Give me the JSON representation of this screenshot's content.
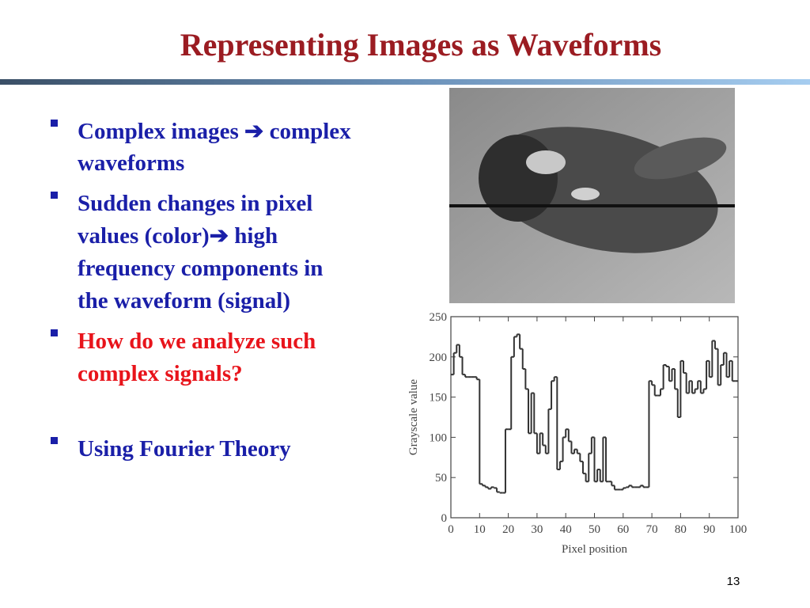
{
  "title": "Representing Images as Waveforms",
  "bullets": [
    {
      "lines": [
        "Complex images ➔ complex",
        "waveforms"
      ],
      "color": "#1a1fa8"
    },
    {
      "lines": [
        "Sudden changes in pixel",
        "values (color)➔ high",
        "frequency components in",
        "the waveform (signal)"
      ],
      "color": "#1a1fa8"
    },
    {
      "lines": [
        "How do we analyze such",
        "complex  signals?"
      ],
      "color": "#e8141b"
    },
    {
      "lines": [
        "Using Fourier Theory"
      ],
      "color": "#1a1fa8"
    }
  ],
  "page_number": 13,
  "chart_data": {
    "type": "line",
    "step": true,
    "x_label": "Pixel position",
    "y_label": "Grayscale value",
    "x": [
      0,
      1,
      2,
      3,
      4,
      5,
      6,
      7,
      8,
      9,
      10,
      11,
      12,
      13,
      14,
      15,
      16,
      17,
      18,
      19,
      20,
      21,
      22,
      23,
      24,
      25,
      26,
      27,
      28,
      29,
      30,
      31,
      32,
      33,
      34,
      35,
      36,
      37,
      38,
      39,
      40,
      41,
      42,
      43,
      44,
      45,
      46,
      47,
      48,
      49,
      50,
      51,
      52,
      53,
      54,
      55,
      56,
      57,
      58,
      59,
      60,
      61,
      62,
      63,
      64,
      65,
      66,
      67,
      68,
      69,
      70,
      71,
      72,
      73,
      74,
      75,
      76,
      77,
      78,
      79,
      80,
      81,
      82,
      83,
      84,
      85,
      86,
      87,
      88,
      89,
      90,
      91,
      92,
      93,
      94,
      95,
      96,
      97,
      98,
      99
    ],
    "series": [
      {
        "name": "Grayscale",
        "color": "#333333",
        "values": [
          178,
          205,
          215,
          200,
          178,
          175,
          175,
          175,
          175,
          172,
          42,
          40,
          38,
          36,
          38,
          37,
          32,
          31,
          31,
          110,
          110,
          200,
          225,
          228,
          210,
          185,
          160,
          105,
          155,
          105,
          80,
          105,
          90,
          80,
          135,
          170,
          175,
          60,
          70,
          100,
          110,
          95,
          80,
          85,
          80,
          70,
          55,
          45,
          80,
          100,
          45,
          60,
          45,
          100,
          45,
          45,
          40,
          35,
          35,
          35,
          37,
          38,
          40,
          38,
          38,
          38,
          40,
          38,
          38,
          170,
          165,
          152,
          152,
          160,
          190,
          188,
          170,
          185,
          160,
          125,
          195,
          180,
          155,
          170,
          155,
          160,
          170,
          155,
          160,
          195,
          175,
          220,
          210,
          165,
          190,
          205,
          175,
          195,
          170,
          170
        ]
      }
    ],
    "xlim": [
      0,
      100
    ],
    "ylim": [
      0,
      250
    ],
    "xticks": [
      0,
      10,
      20,
      30,
      40,
      50,
      60,
      70,
      80,
      90,
      100
    ],
    "yticks": [
      0,
      50,
      100,
      150,
      200,
      250
    ]
  }
}
